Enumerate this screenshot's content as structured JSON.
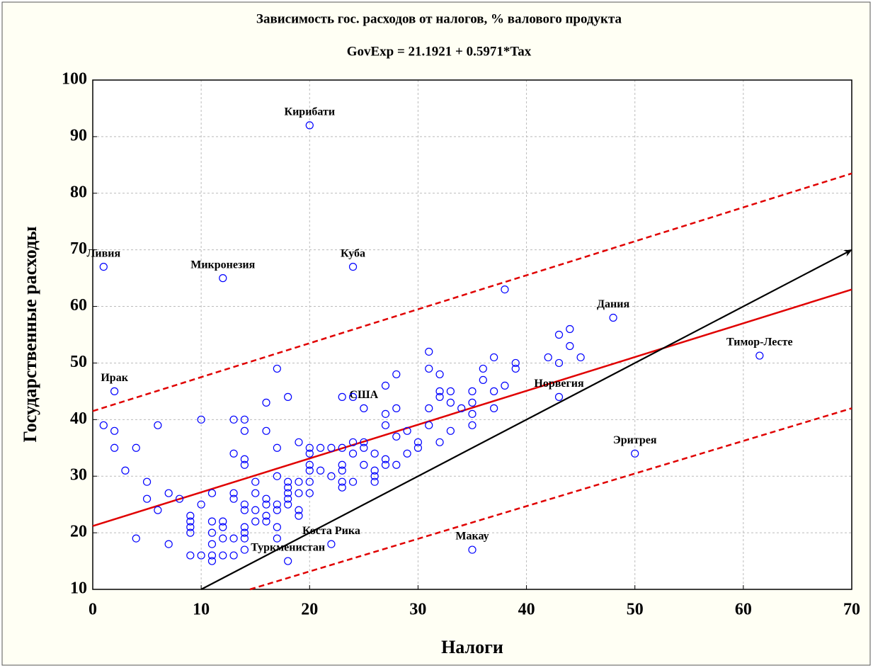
{
  "chart_data": {
    "type": "scatter",
    "title": "Зависимость гос. расходов от налогов, % валового продукта",
    "subtitle": "GovExp = 21.1921 + 0.5971*Tax",
    "xlabel": "Налоги",
    "ylabel": "Государственные расходы",
    "xlim": [
      0,
      70
    ],
    "xticks": [
      0,
      10,
      20,
      30,
      40,
      50,
      60,
      70
    ],
    "ylim": [
      10,
      100
    ],
    "yticks": [
      10,
      20,
      30,
      40,
      50,
      60,
      70,
      80,
      90,
      100
    ],
    "grid": true,
    "color": "#0000ff",
    "x": [
      1,
      12,
      24,
      20,
      2,
      25,
      48,
      61.5,
      43,
      50,
      22,
      18,
      35,
      1,
      2,
      2,
      3,
      4,
      4,
      5,
      5,
      6,
      6,
      7,
      7,
      8,
      9,
      9,
      9,
      9,
      9,
      10,
      10,
      10,
      11,
      11,
      11,
      11,
      11,
      11,
      12,
      12,
      12,
      12,
      13,
      13,
      13,
      13,
      13,
      13,
      14,
      14,
      14,
      14,
      14,
      14,
      14,
      14,
      14,
      14,
      15,
      15,
      15,
      15,
      16,
      16,
      16,
      16,
      16,
      16,
      17,
      17,
      17,
      17,
      17,
      17,
      17,
      18,
      18,
      18,
      18,
      18,
      18,
      19,
      19,
      19,
      19,
      19,
      20,
      20,
      20,
      20,
      20,
      20,
      21,
      21,
      22,
      22,
      23,
      23,
      23,
      23,
      23,
      23,
      24,
      24,
      24,
      24,
      25,
      25,
      25,
      26,
      26,
      26,
      26,
      27,
      27,
      27,
      27,
      27,
      28,
      28,
      28,
      28,
      29,
      29,
      30,
      30,
      31,
      31,
      31,
      31,
      32,
      32,
      32,
      32,
      33,
      33,
      33,
      34,
      35,
      35,
      35,
      35,
      36,
      36,
      37,
      37,
      37,
      38,
      38,
      39,
      39,
      42,
      43,
      43,
      44,
      44,
      45
    ],
    "y": [
      67,
      65,
      67,
      92,
      45,
      42,
      58,
      51.3,
      44,
      34,
      18,
      15,
      17,
      39,
      38,
      35,
      31,
      35,
      19,
      29,
      26,
      39,
      24,
      27,
      18,
      26,
      23,
      22,
      21,
      20,
      16,
      40,
      25,
      16,
      27,
      22,
      20,
      18,
      16,
      15,
      22,
      21,
      19,
      16,
      40,
      34,
      27,
      26,
      19,
      16,
      40,
      38,
      33,
      32,
      25,
      24,
      21,
      20,
      19,
      17,
      29,
      27,
      24,
      22,
      43,
      38,
      26,
      25,
      23,
      22,
      49,
      35,
      30,
      25,
      24,
      21,
      19,
      44,
      29,
      28,
      27,
      26,
      25,
      36,
      29,
      27,
      24,
      23,
      35,
      34,
      32,
      31,
      29,
      27,
      35,
      31,
      35,
      30,
      44,
      35,
      32,
      31,
      29,
      28,
      44,
      36,
      34,
      29,
      36,
      35,
      32,
      34,
      31,
      30,
      29,
      46,
      41,
      39,
      33,
      32,
      48,
      42,
      37,
      32,
      38,
      34,
      36,
      35,
      52,
      49,
      42,
      39,
      48,
      45,
      44,
      36,
      45,
      43,
      38,
      42,
      45,
      43,
      41,
      39,
      49,
      47,
      51,
      45,
      42,
      63,
      46,
      50,
      49,
      51,
      55,
      50,
      56,
      53,
      51
    ],
    "point_labels": [
      "Ливия",
      "Микронезия",
      "Куба",
      "Кирибати",
      "Ирак",
      "США",
      "Дания",
      "Тимор-Лесте",
      "Норвегия",
      "Эритрея",
      "Коста Рика",
      "Туркменистан",
      "Макау",
      null,
      null,
      null,
      null,
      null,
      null,
      null,
      null,
      null,
      null,
      null,
      null,
      null,
      null,
      null,
      null,
      null,
      null,
      null,
      null,
      null,
      null,
      null,
      null,
      null,
      null,
      null,
      null,
      null,
      null,
      null,
      null,
      null,
      null,
      null,
      null,
      null,
      null,
      null,
      null,
      null,
      null,
      null,
      null,
      null,
      null,
      null,
      null,
      null,
      null,
      null,
      null,
      null,
      null,
      null,
      null,
      null,
      null,
      null,
      null,
      null,
      null,
      null,
      null,
      null,
      null,
      null,
      null,
      null,
      null,
      null,
      null,
      null,
      null,
      null,
      null,
      null,
      null,
      null,
      null,
      null,
      null,
      null,
      null,
      null,
      null,
      null,
      null,
      null,
      null,
      null,
      null,
      null,
      null,
      null,
      null,
      null,
      null,
      null,
      null,
      null,
      null,
      null,
      null,
      null,
      null,
      null,
      null,
      null,
      null,
      null,
      null,
      null,
      null,
      null,
      null,
      null,
      null,
      null,
      null,
      null,
      null,
      null,
      null,
      null,
      null,
      null,
      null,
      null,
      null,
      null,
      null,
      null,
      null,
      null,
      null,
      null,
      null,
      null,
      null,
      null,
      null,
      null,
      null,
      null,
      null
    ],
    "fit_line": {
      "x": [
        0,
        70
      ],
      "y": [
        21.1921,
        62.9891
      ],
      "color": "#e00000"
    },
    "upper_band": {
      "x": [
        0,
        70
      ],
      "y": [
        41.5,
        83.5
      ],
      "color": "#e00000"
    },
    "lower_band": {
      "x": [
        14.5,
        70
      ],
      "y": [
        10,
        42
      ],
      "color": "#e00000"
    },
    "arrow": {
      "x": [
        10,
        70
      ],
      "y": [
        10,
        70
      ],
      "color": "#000000"
    }
  }
}
